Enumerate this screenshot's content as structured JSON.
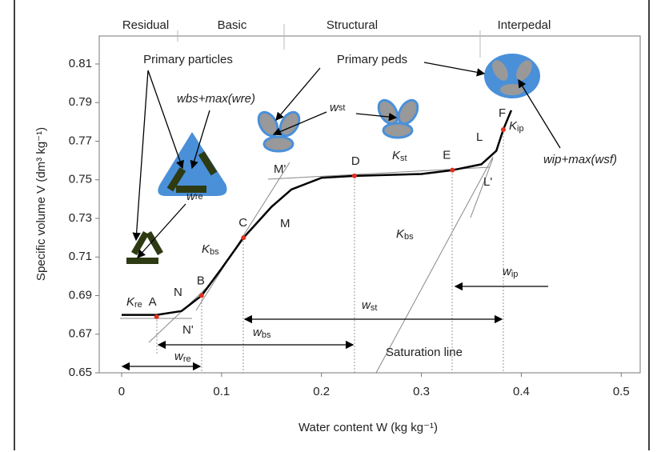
{
  "chart_data": {
    "type": "line",
    "x_label": "Water content W (kg kg⁻¹)",
    "y_label": "Specific volume V (dm³ kg⁻¹)",
    "x": [
      0,
      0.035,
      0.06,
      0.08,
      0.1,
      0.122,
      0.15,
      0.17,
      0.2,
      0.233,
      0.3,
      0.331,
      0.36,
      0.375,
      0.382,
      0.39
    ],
    "values": [
      0.68,
      0.68,
      0.682,
      0.69,
      0.704,
      0.72,
      0.736,
      0.745,
      0.751,
      0.752,
      0.753,
      0.755,
      0.758,
      0.765,
      0.776,
      0.786
    ],
    "color": "#000000",
    "points": [
      {
        "label": "A",
        "x": 0.035,
        "y": 0.679
      },
      {
        "label": "B",
        "x": 0.08,
        "y": 0.69
      },
      {
        "label": "C",
        "x": 0.122,
        "y": 0.72
      },
      {
        "label": "D",
        "x": 0.233,
        "y": 0.752
      },
      {
        "label": "E",
        "x": 0.331,
        "y": 0.755
      },
      {
        "label": "F",
        "x": 0.382,
        "y": 0.776
      }
    ],
    "point_color": "#e0301e",
    "xlim": [
      -0.0224,
      0.519
    ],
    "ylim": [
      0.65,
      0.8245
    ],
    "xticks": [
      0,
      0.1,
      0.2,
      0.3,
      0.4,
      0.5
    ],
    "yticks": [
      0.65,
      0.67,
      0.69,
      0.71,
      0.73,
      0.75,
      0.77,
      0.79,
      0.81
    ],
    "grid": false,
    "annotations": [
      "Residual",
      "Basic",
      "Structural",
      "Interpedal",
      "Primary particles",
      "Primary peds",
      "wbs+max(wre)",
      {
        "base": "w",
        "sub": "st"
      },
      {
        "base": "w",
        "sub": "re"
      },
      "wip+max(wsf)",
      {
        "base": "K",
        "sub": "re"
      },
      {
        "base": "K",
        "sub": "bs"
      },
      {
        "base": "K",
        "sub": "bs"
      },
      {
        "base": "K",
        "sub": "st"
      },
      {
        "base": "K",
        "sub": "ip"
      },
      "N",
      "N'",
      "M'",
      "M",
      "L",
      "L'",
      {
        "base": "w",
        "sub": "re"
      },
      {
        "base": "w",
        "sub": "bs"
      },
      {
        "base": "w",
        "sub": "st"
      },
      {
        "base": "w",
        "sub": "ip"
      },
      "Saturation line"
    ]
  }
}
